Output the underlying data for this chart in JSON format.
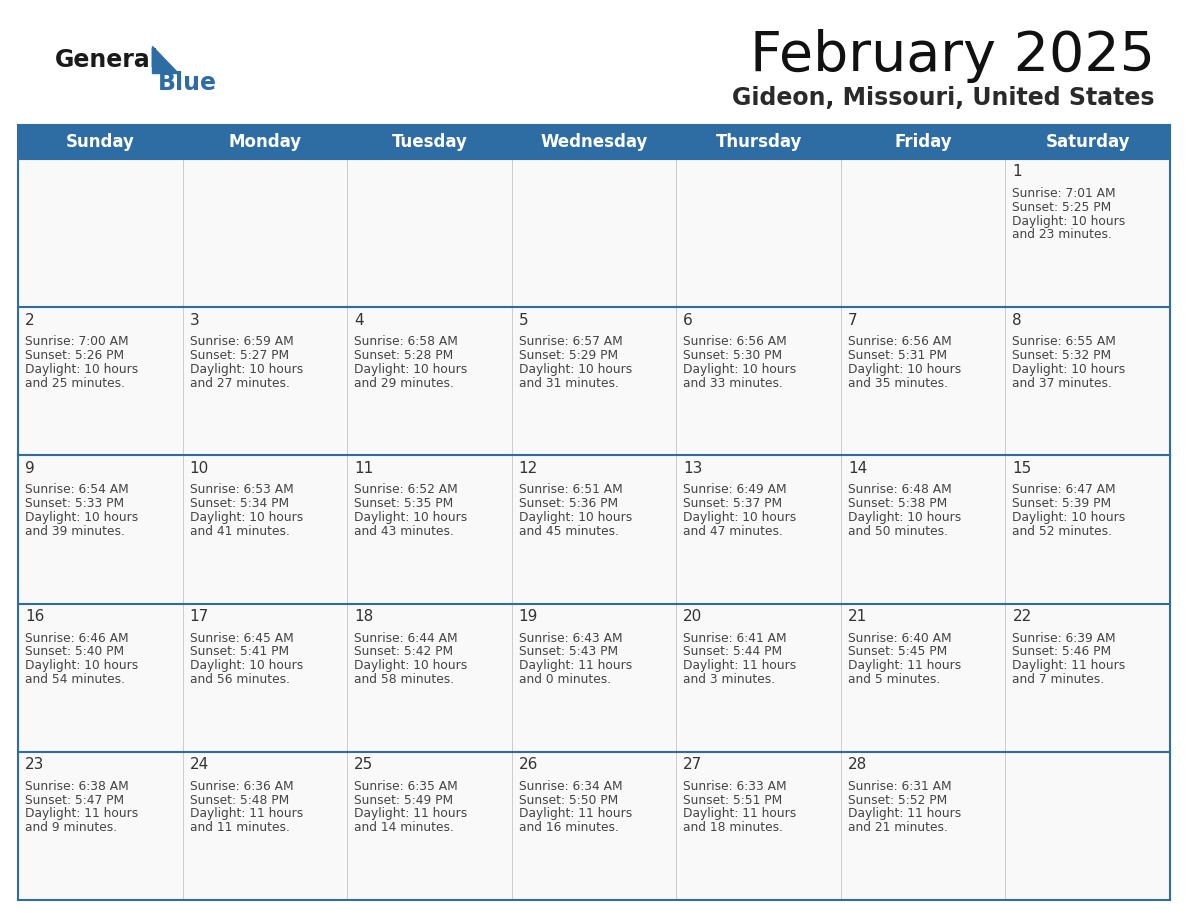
{
  "title": "February 2025",
  "subtitle": "Gideon, Missouri, United States",
  "header_bg_color": "#2E6DA4",
  "header_text_color": "#FFFFFF",
  "cell_bg_color": "#F9F9F9",
  "cell_text_color": "#444444",
  "day_number_color": "#333333",
  "border_color": "#2E6DA4",
  "separator_color": "#CCCCCC",
  "days_of_week": [
    "Sunday",
    "Monday",
    "Tuesday",
    "Wednesday",
    "Thursday",
    "Friday",
    "Saturday"
  ],
  "logo_color_general": "#1a1a1a",
  "logo_color_blue": "#2E6DA4",
  "calendar_data": [
    [
      null,
      null,
      null,
      null,
      null,
      null,
      {
        "day": "1",
        "sunrise": "7:01 AM",
        "sunset": "5:25 PM",
        "daylight_l1": "Daylight: 10 hours",
        "daylight_l2": "and 23 minutes."
      }
    ],
    [
      {
        "day": "2",
        "sunrise": "7:00 AM",
        "sunset": "5:26 PM",
        "daylight_l1": "Daylight: 10 hours",
        "daylight_l2": "and 25 minutes."
      },
      {
        "day": "3",
        "sunrise": "6:59 AM",
        "sunset": "5:27 PM",
        "daylight_l1": "Daylight: 10 hours",
        "daylight_l2": "and 27 minutes."
      },
      {
        "day": "4",
        "sunrise": "6:58 AM",
        "sunset": "5:28 PM",
        "daylight_l1": "Daylight: 10 hours",
        "daylight_l2": "and 29 minutes."
      },
      {
        "day": "5",
        "sunrise": "6:57 AM",
        "sunset": "5:29 PM",
        "daylight_l1": "Daylight: 10 hours",
        "daylight_l2": "and 31 minutes."
      },
      {
        "day": "6",
        "sunrise": "6:56 AM",
        "sunset": "5:30 PM",
        "daylight_l1": "Daylight: 10 hours",
        "daylight_l2": "and 33 minutes."
      },
      {
        "day": "7",
        "sunrise": "6:56 AM",
        "sunset": "5:31 PM",
        "daylight_l1": "Daylight: 10 hours",
        "daylight_l2": "and 35 minutes."
      },
      {
        "day": "8",
        "sunrise": "6:55 AM",
        "sunset": "5:32 PM",
        "daylight_l1": "Daylight: 10 hours",
        "daylight_l2": "and 37 minutes."
      }
    ],
    [
      {
        "day": "9",
        "sunrise": "6:54 AM",
        "sunset": "5:33 PM",
        "daylight_l1": "Daylight: 10 hours",
        "daylight_l2": "and 39 minutes."
      },
      {
        "day": "10",
        "sunrise": "6:53 AM",
        "sunset": "5:34 PM",
        "daylight_l1": "Daylight: 10 hours",
        "daylight_l2": "and 41 minutes."
      },
      {
        "day": "11",
        "sunrise": "6:52 AM",
        "sunset": "5:35 PM",
        "daylight_l1": "Daylight: 10 hours",
        "daylight_l2": "and 43 minutes."
      },
      {
        "day": "12",
        "sunrise": "6:51 AM",
        "sunset": "5:36 PM",
        "daylight_l1": "Daylight: 10 hours",
        "daylight_l2": "and 45 minutes."
      },
      {
        "day": "13",
        "sunrise": "6:49 AM",
        "sunset": "5:37 PM",
        "daylight_l1": "Daylight: 10 hours",
        "daylight_l2": "and 47 minutes."
      },
      {
        "day": "14",
        "sunrise": "6:48 AM",
        "sunset": "5:38 PM",
        "daylight_l1": "Daylight: 10 hours",
        "daylight_l2": "and 50 minutes."
      },
      {
        "day": "15",
        "sunrise": "6:47 AM",
        "sunset": "5:39 PM",
        "daylight_l1": "Daylight: 10 hours",
        "daylight_l2": "and 52 minutes."
      }
    ],
    [
      {
        "day": "16",
        "sunrise": "6:46 AM",
        "sunset": "5:40 PM",
        "daylight_l1": "Daylight: 10 hours",
        "daylight_l2": "and 54 minutes."
      },
      {
        "day": "17",
        "sunrise": "6:45 AM",
        "sunset": "5:41 PM",
        "daylight_l1": "Daylight: 10 hours",
        "daylight_l2": "and 56 minutes."
      },
      {
        "day": "18",
        "sunrise": "6:44 AM",
        "sunset": "5:42 PM",
        "daylight_l1": "Daylight: 10 hours",
        "daylight_l2": "and 58 minutes."
      },
      {
        "day": "19",
        "sunrise": "6:43 AM",
        "sunset": "5:43 PM",
        "daylight_l1": "Daylight: 11 hours",
        "daylight_l2": "and 0 minutes."
      },
      {
        "day": "20",
        "sunrise": "6:41 AM",
        "sunset": "5:44 PM",
        "daylight_l1": "Daylight: 11 hours",
        "daylight_l2": "and 3 minutes."
      },
      {
        "day": "21",
        "sunrise": "6:40 AM",
        "sunset": "5:45 PM",
        "daylight_l1": "Daylight: 11 hours",
        "daylight_l2": "and 5 minutes."
      },
      {
        "day": "22",
        "sunrise": "6:39 AM",
        "sunset": "5:46 PM",
        "daylight_l1": "Daylight: 11 hours",
        "daylight_l2": "and 7 minutes."
      }
    ],
    [
      {
        "day": "23",
        "sunrise": "6:38 AM",
        "sunset": "5:47 PM",
        "daylight_l1": "Daylight: 11 hours",
        "daylight_l2": "and 9 minutes."
      },
      {
        "day": "24",
        "sunrise": "6:36 AM",
        "sunset": "5:48 PM",
        "daylight_l1": "Daylight: 11 hours",
        "daylight_l2": "and 11 minutes."
      },
      {
        "day": "25",
        "sunrise": "6:35 AM",
        "sunset": "5:49 PM",
        "daylight_l1": "Daylight: 11 hours",
        "daylight_l2": "and 14 minutes."
      },
      {
        "day": "26",
        "sunrise": "6:34 AM",
        "sunset": "5:50 PM",
        "daylight_l1": "Daylight: 11 hours",
        "daylight_l2": "and 16 minutes."
      },
      {
        "day": "27",
        "sunrise": "6:33 AM",
        "sunset": "5:51 PM",
        "daylight_l1": "Daylight: 11 hours",
        "daylight_l2": "and 18 minutes."
      },
      {
        "day": "28",
        "sunrise": "6:31 AM",
        "sunset": "5:52 PM",
        "daylight_l1": "Daylight: 11 hours",
        "daylight_l2": "and 21 minutes."
      },
      null
    ]
  ]
}
